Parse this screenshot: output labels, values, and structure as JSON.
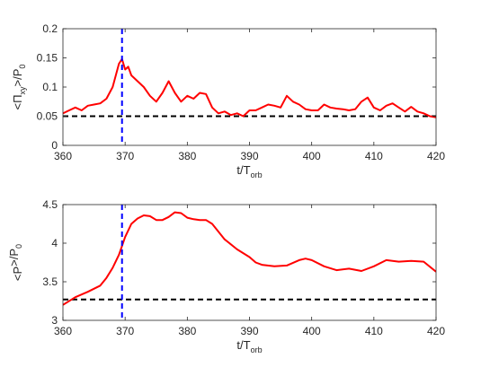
{
  "chart_data": [
    {
      "type": "line",
      "xlabel_main": "t/T",
      "xlabel_sub": "orb",
      "ylabel_pre": "<Π",
      "ylabel_sub": "xy",
      "ylabel_post": ">/P",
      "ylabel_sub2": "0",
      "xlim": [
        360,
        420
      ],
      "ylim": [
        0,
        0.2
      ],
      "x_ticks": [
        "360",
        "370",
        "380",
        "390",
        "400",
        "410",
        "420"
      ],
      "y_ticks": [
        "0",
        "0.05",
        "0.1",
        "0.15",
        "0.2"
      ],
      "x_tick_values": [
        360,
        370,
        380,
        390,
        400,
        410,
        420
      ],
      "y_tick_values": [
        0,
        0.05,
        0.1,
        0.15,
        0.2
      ],
      "reference_line": {
        "y": 0.05,
        "color": "#000000",
        "style": "dashed"
      },
      "marker_line": {
        "x": 369.5,
        "color": "#0000ff",
        "style": "dashed"
      },
      "series_color": "#ff0000",
      "series": [
        {
          "x": [
            360,
            361,
            362,
            363,
            364,
            365,
            366,
            367,
            368,
            368.5,
            369,
            369.5,
            370,
            370.5,
            371,
            372,
            373,
            374,
            375,
            376,
            377,
            378,
            379,
            380,
            381,
            382,
            383,
            384,
            385,
            386,
            387,
            388,
            389,
            390,
            391,
            392,
            393,
            394,
            395,
            396,
            397,
            398,
            399,
            400,
            401,
            402,
            403,
            404,
            405,
            406,
            407,
            408,
            409,
            410,
            411,
            412,
            413,
            414,
            415,
            416,
            417,
            418,
            419,
            420
          ],
          "y": [
            0.055,
            0.06,
            0.065,
            0.06,
            0.068,
            0.07,
            0.072,
            0.08,
            0.1,
            0.12,
            0.14,
            0.148,
            0.13,
            0.135,
            0.12,
            0.11,
            0.1,
            0.085,
            0.075,
            0.09,
            0.11,
            0.09,
            0.075,
            0.085,
            0.08,
            0.09,
            0.088,
            0.065,
            0.055,
            0.058,
            0.052,
            0.055,
            0.05,
            0.06,
            0.06,
            0.065,
            0.07,
            0.068,
            0.065,
            0.085,
            0.075,
            0.07,
            0.062,
            0.06,
            0.06,
            0.07,
            0.065,
            0.063,
            0.062,
            0.06,
            0.062,
            0.075,
            0.082,
            0.065,
            0.06,
            0.068,
            0.072,
            0.065,
            0.058,
            0.066,
            0.058,
            0.055,
            0.05,
            0.048
          ]
        }
      ]
    },
    {
      "type": "line",
      "xlabel_main": "t/T",
      "xlabel_sub": "orb",
      "ylabel_pre": "<P",
      "ylabel_sub": "",
      "ylabel_post": ">/P",
      "ylabel_sub2": "0",
      "xlim": [
        360,
        420
      ],
      "ylim": [
        3,
        4.5
      ],
      "x_ticks": [
        "360",
        "370",
        "380",
        "390",
        "400",
        "410",
        "420"
      ],
      "y_ticks": [
        "3",
        "3.5",
        "4",
        "4.5"
      ],
      "x_tick_values": [
        360,
        370,
        380,
        390,
        400,
        410,
        420
      ],
      "y_tick_values": [
        3,
        3.5,
        4,
        4.5
      ],
      "reference_line": {
        "y": 3.27,
        "color": "#000000",
        "style": "dashed"
      },
      "marker_line": {
        "x": 369.5,
        "color": "#0000ff",
        "style": "dashed"
      },
      "series_color": "#ff0000",
      "series": [
        {
          "x": [
            360,
            362,
            364,
            366,
            367,
            368,
            369,
            370,
            371,
            372,
            373,
            374,
            375,
            376,
            377,
            378,
            379,
            380,
            381,
            382,
            383,
            384,
            386,
            388,
            390,
            391,
            392,
            394,
            396,
            398,
            399,
            400,
            402,
            404,
            406,
            408,
            410,
            412,
            414,
            416,
            418,
            420
          ],
          "y": [
            3.2,
            3.3,
            3.37,
            3.45,
            3.55,
            3.68,
            3.85,
            4.08,
            4.25,
            4.32,
            4.36,
            4.35,
            4.3,
            4.3,
            4.34,
            4.4,
            4.39,
            4.33,
            4.31,
            4.3,
            4.3,
            4.25,
            4.05,
            3.92,
            3.82,
            3.75,
            3.72,
            3.7,
            3.71,
            3.78,
            3.8,
            3.78,
            3.7,
            3.65,
            3.67,
            3.64,
            3.7,
            3.78,
            3.76,
            3.77,
            3.76,
            3.63
          ]
        }
      ]
    }
  ]
}
